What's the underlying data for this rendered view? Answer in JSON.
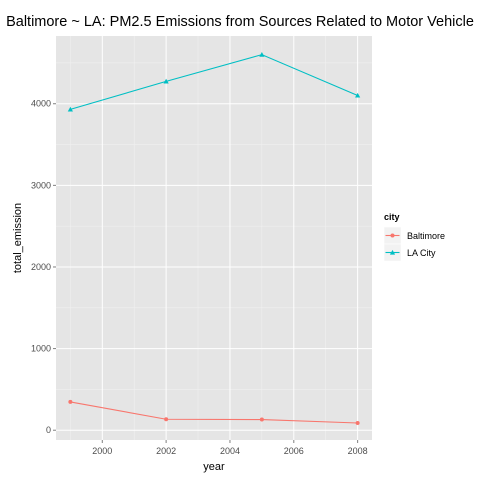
{
  "chart_data": {
    "type": "line",
    "title": "Baltimore ~ LA: PM2.5 Emissions from Sources Related to Motor Vehicle",
    "xlabel": "year",
    "ylabel": "total_emission",
    "x": [
      1999,
      2002,
      2005,
      2008
    ],
    "xlim": [
      1998.55,
      2008.45
    ],
    "ylim": [
      -120,
      4830
    ],
    "x_ticks": [
      2000,
      2002,
      2004,
      2006,
      2008
    ],
    "y_ticks": [
      0,
      1000,
      2000,
      3000,
      4000
    ],
    "grid": true,
    "legend": {
      "title": "city",
      "placement": "right"
    },
    "series": [
      {
        "name": "Baltimore",
        "values": [
          346.82,
          134.31,
          130.43,
          88.28
        ],
        "color": "#F8766D",
        "marker": "circle"
      },
      {
        "name": "LA City",
        "values": [
          3931.12,
          4274.03,
          4601.41,
          4101.32
        ],
        "color": "#00BFC4",
        "marker": "triangle"
      }
    ]
  }
}
